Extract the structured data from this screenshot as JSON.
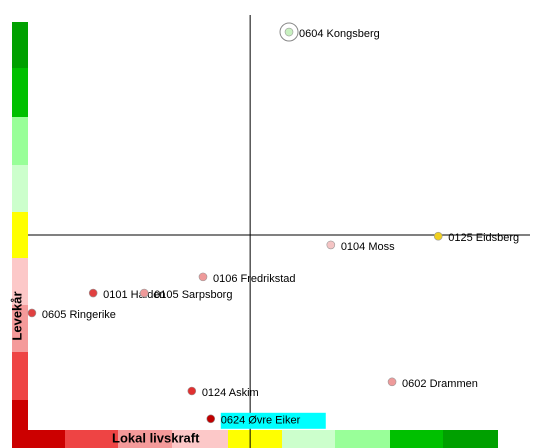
{
  "chart_data": {
    "type": "scatter",
    "x_label": "Lokal livskraft",
    "y_label": "Levekår",
    "xlim": [
      0,
      100
    ],
    "ylim": [
      0,
      100
    ],
    "crosshair": {
      "x": 49,
      "y": 47
    },
    "labels": [
      "0604 Kongsberg",
      "0125 Eidsberg",
      "0104 Moss",
      "0106 Fredrikstad",
      "0101 Halden",
      "0105 Sarpsborg",
      "0605 Ringerike",
      "0124 Askim",
      "0602 Drammen",
      "0624 Øvre Eiker"
    ],
    "x": [
      57.0,
      87.7,
      65.6,
      39.3,
      16.7,
      27.2,
      4.1,
      37.0,
      78.2,
      40.9
    ],
    "y": [
      95.9,
      46.7,
      44.6,
      36.9,
      33.0,
      33.0,
      28.2,
      9.4,
      11.6,
      2.7
    ],
    "colors": [
      "#c8f0c0",
      "#f0d020",
      "#f4c4c4",
      "#ee9a9a",
      "#e04040",
      "#ee9a9a",
      "#e04040",
      "#e03030",
      "#ee9a9a",
      "#c00000"
    ],
    "selected": 0,
    "highlighted": 9,
    "highlight_color": "#00ffff"
  }
}
